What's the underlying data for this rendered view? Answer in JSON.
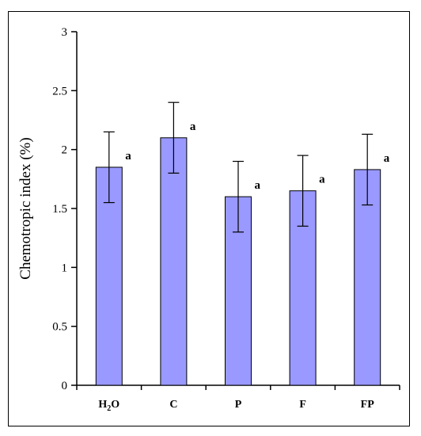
{
  "chart_data": {
    "type": "bar",
    "categories": [
      "H2O",
      "C",
      "P",
      "F",
      "FP"
    ],
    "values": [
      1.85,
      2.1,
      1.6,
      1.65,
      1.83
    ],
    "error": [
      0.3,
      0.3,
      0.3,
      0.3,
      0.3
    ],
    "significance": [
      "a",
      "a",
      "a",
      "a",
      "a"
    ],
    "ylabel": "Chemotropic  index (%)",
    "ylim": [
      0,
      3
    ],
    "yticks": [
      "0",
      "0.5",
      "1",
      "1.5",
      "2",
      "2.5",
      "3"
    ],
    "grid": false,
    "bar_color": "#9999ff"
  }
}
